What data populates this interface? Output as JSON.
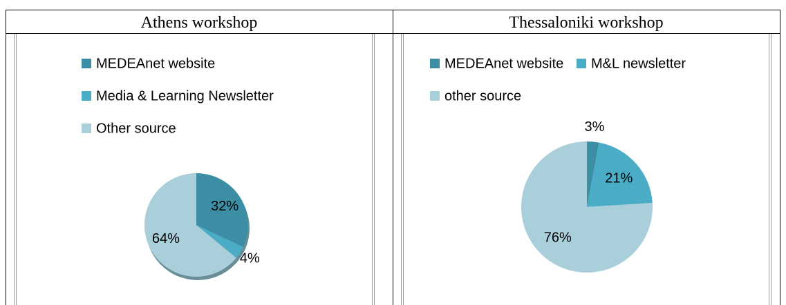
{
  "table": {
    "headers": [
      "Athens workshop",
      "Thessaloniki workshop"
    ]
  },
  "chart_data": [
    {
      "type": "pie",
      "categories": [
        "MEDEAnet website",
        "Media & Learning Newsletter",
        "Other source"
      ],
      "values": [
        32,
        4,
        64
      ],
      "value_labels": [
        "32%",
        "4%",
        "64%"
      ],
      "colors": [
        "#3b8ea3",
        "#4bacc6",
        "#a9cfdb"
      ]
    },
    {
      "type": "pie",
      "categories": [
        "MEDEAnet website",
        "M&L newsletter",
        "other source"
      ],
      "values": [
        3,
        21,
        76
      ],
      "value_labels": [
        "3%",
        "21%",
        "76%"
      ],
      "colors": [
        "#3b8ea3",
        "#4bacc6",
        "#a9cfdb"
      ]
    }
  ]
}
